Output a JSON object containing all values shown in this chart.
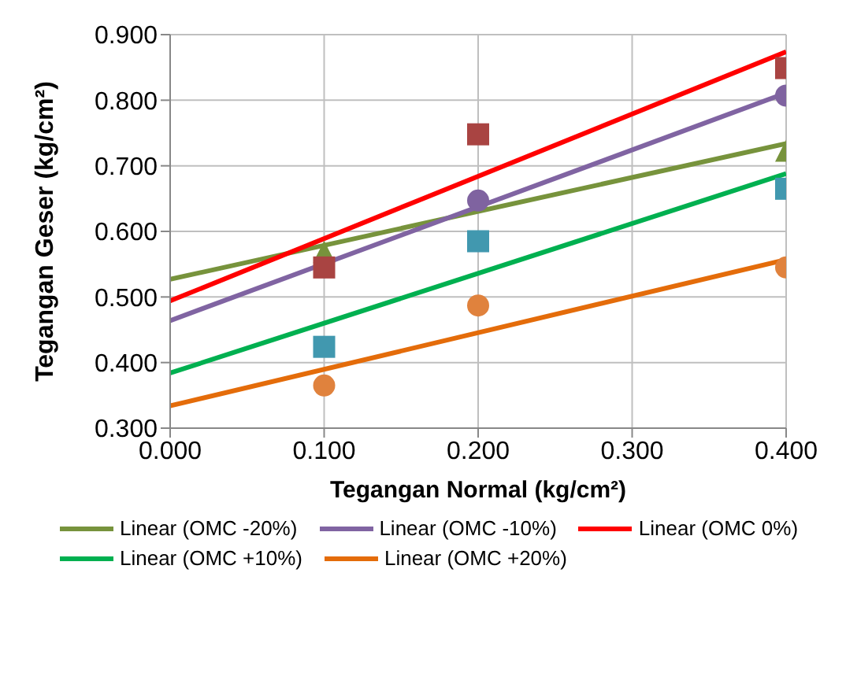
{
  "chart_data": {
    "type": "scatter",
    "xlabel": "Tegangan Normal (kg/cm²)",
    "ylabel": "Tegangan Geser (kg/cm²)",
    "xlim": [
      0,
      0.4
    ],
    "xticks": [
      {
        "value": 0,
        "label": "0.000"
      },
      {
        "value": 0.1,
        "label": "0.100"
      },
      {
        "value": 0.2,
        "label": "0.200"
      },
      {
        "value": 0.3,
        "label": "0.300"
      },
      {
        "value": 0.4,
        "label": "0.400"
      }
    ],
    "ylim": [
      0.3,
      0.9
    ],
    "yticks": [
      {
        "value": 0.3,
        "label": "0.300"
      },
      {
        "value": 0.4,
        "label": "0.400"
      },
      {
        "value": 0.5,
        "label": "0.500"
      },
      {
        "value": 0.6,
        "label": "0.600"
      },
      {
        "value": 0.7,
        "label": "0.700"
      },
      {
        "value": 0.8,
        "label": "0.800"
      },
      {
        "value": 0.9,
        "label": "0.900"
      }
    ],
    "grid": true,
    "legend": "bottom",
    "series": [
      {
        "marker": "triangle",
        "color": "#77933c",
        "x": [
          0.1,
          0.4
        ],
        "values": [
          0.569,
          0.723
        ]
      },
      {
        "marker": "circle",
        "color": "#7f63a0",
        "x": [
          0.2,
          0.4
        ],
        "values": [
          0.647,
          0.807
        ]
      },
      {
        "marker": "square",
        "color": "#a94442",
        "x": [
          0.1,
          0.2,
          0.4
        ],
        "values": [
          0.545,
          0.748,
          0.849
        ]
      },
      {
        "marker": "square",
        "color": "#4198af",
        "x": [
          0.1,
          0.2,
          0.4
        ],
        "values": [
          0.424,
          0.585,
          0.665
        ]
      },
      {
        "marker": "circle",
        "color": "#e0823d",
        "x": [
          0.1,
          0.2,
          0.4
        ],
        "values": [
          0.365,
          0.487,
          0.545
        ]
      },
      {
        "type": "line",
        "name": "Linear (OMC -20%)",
        "color": "#77933c",
        "x": [
          0,
          0.4
        ],
        "values": [
          0.527,
          0.734
        ]
      },
      {
        "type": "line",
        "name": "Linear (OMC -10%)",
        "color": "#8064a2",
        "x": [
          0,
          0.4
        ],
        "values": [
          0.464,
          0.811
        ]
      },
      {
        "type": "line",
        "name": "Linear (OMC 0%)",
        "color": "#ff0000",
        "x": [
          0,
          0.4
        ],
        "values": [
          0.494,
          0.874
        ]
      },
      {
        "type": "line",
        "name": "Linear (OMC +10%)",
        "color": "#00b050",
        "x": [
          0,
          0.4
        ],
        "values": [
          0.384,
          0.688
        ]
      },
      {
        "type": "line",
        "name": "Linear (OMC +20%)",
        "color": "#e46c0a",
        "x": [
          0,
          0.4
        ],
        "values": [
          0.334,
          0.557
        ]
      }
    ]
  }
}
